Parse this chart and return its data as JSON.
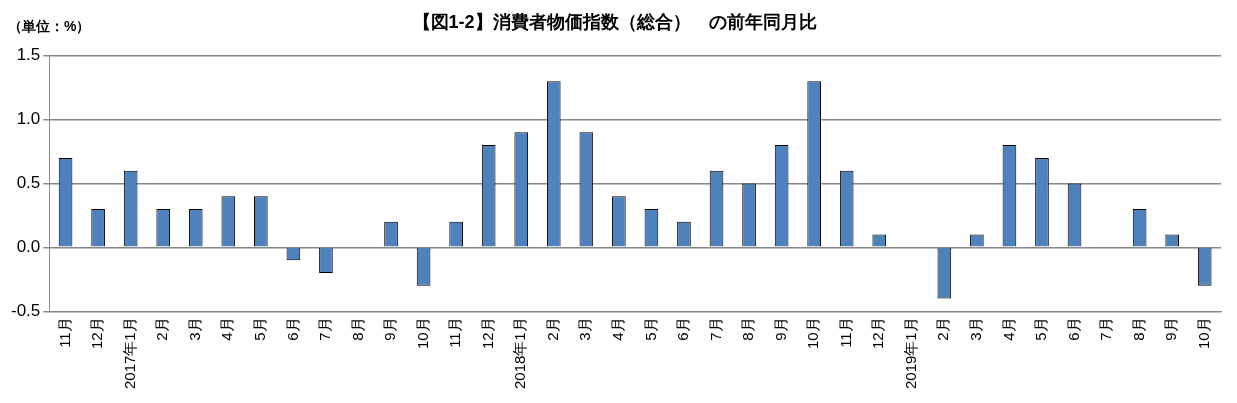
{
  "chart_data": {
    "type": "bar",
    "title": "【図1-2】消費者物価指数（総合）　の前年同月比",
    "ylabel": "（単位：%）",
    "categories": [
      "11月",
      "12月",
      "2017年1月",
      "2月",
      "3月",
      "4月",
      "5月",
      "6月",
      "7月",
      "8月",
      "9月",
      "10月",
      "11月",
      "12月",
      "2018年1月",
      "2月",
      "3月",
      "4月",
      "5月",
      "6月",
      "7月",
      "8月",
      "9月",
      "10月",
      "11月",
      "12月",
      "2019年1月",
      "2月",
      "3月",
      "4月",
      "5月",
      "6月",
      "7月",
      "8月",
      "9月",
      "10月"
    ],
    "values": [
      0.7,
      0.3,
      0.6,
      0.3,
      0.3,
      0.4,
      0.4,
      -0.1,
      -0.2,
      0,
      0.2,
      -0.3,
      0.2,
      0.8,
      0.9,
      1.3,
      0.9,
      0.4,
      0.3,
      0.2,
      0.6,
      0.5,
      0.8,
      1.3,
      0.6,
      0.1,
      0,
      -0.4,
      0.1,
      0.8,
      0.7,
      0.5,
      0,
      0.3,
      0.1,
      -0.3
    ],
    "color": "#4f81bd",
    "ylim": [
      -0.5,
      1.5
    ],
    "yticks": [
      {
        "value": -0.5,
        "label": "-0.5"
      },
      {
        "value": 0,
        "label": "0.0"
      },
      {
        "value": 0.5,
        "label": "0.5"
      },
      {
        "value": 1,
        "label": "1.0"
      },
      {
        "value": 1.5,
        "label": "1.5"
      }
    ],
    "grid": "y",
    "legend": false
  }
}
